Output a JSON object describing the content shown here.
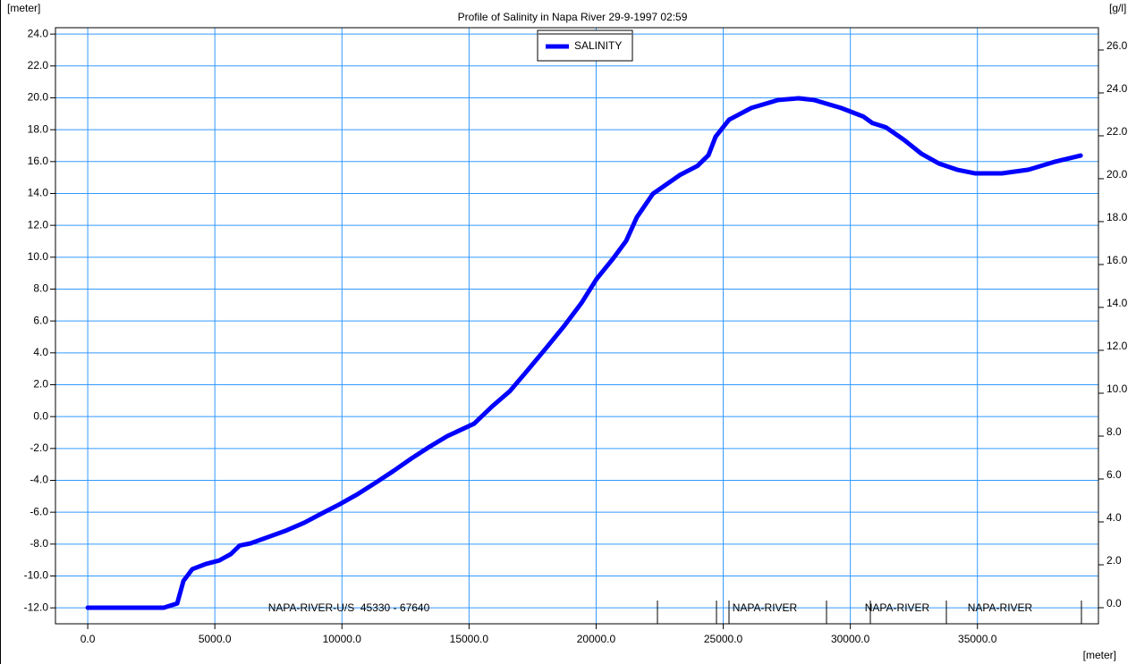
{
  "chart_data": {
    "type": "line",
    "title": "Profile of Salinity in Napa River 29-9-1997 02:59",
    "y_unit": "[meter]",
    "y2_unit": "[g/l]",
    "x_unit": "[meter]",
    "annotations": [
      "NAPA-RIVER-U/S  45330 - 67640",
      "NAPA-RIVER",
      "NAPA-RIVER",
      "NAPA-RIVER"
    ],
    "legend": "top",
    "grid": true,
    "xlim": [
      -1270,
      39760
    ],
    "xticks": [
      {
        "value": 0,
        "label": "0.0"
      },
      {
        "value": 5000,
        "label": "5000.0"
      },
      {
        "value": 10000,
        "label": "10000.0"
      },
      {
        "value": 15000,
        "label": "15000.0"
      },
      {
        "value": 20000,
        "label": "20000.0"
      },
      {
        "value": 25000,
        "label": "25000.0"
      },
      {
        "value": 30000,
        "label": "30000.0"
      },
      {
        "value": 35000,
        "label": "35000.0"
      }
    ],
    "ylim": [
      -13,
      24.4
    ],
    "yticks": [
      {
        "value": -12,
        "label": "-12.0"
      },
      {
        "value": -10,
        "label": "-10.0"
      },
      {
        "value": -8,
        "label": "-8.0"
      },
      {
        "value": -6,
        "label": "-6.0"
      },
      {
        "value": -4,
        "label": "-4.0"
      },
      {
        "value": -2,
        "label": "-2.0"
      },
      {
        "value": 0,
        "label": "0.0"
      },
      {
        "value": 2,
        "label": "2.0"
      },
      {
        "value": 4,
        "label": "4.0"
      },
      {
        "value": 6,
        "label": "6.0"
      },
      {
        "value": 8,
        "label": "8.0"
      },
      {
        "value": 10,
        "label": "10.0"
      },
      {
        "value": 12,
        "label": "12.0"
      },
      {
        "value": 14,
        "label": "14.0"
      },
      {
        "value": 16,
        "label": "16.0"
      },
      {
        "value": 18,
        "label": "18.0"
      },
      {
        "value": 20,
        "label": "20.0"
      },
      {
        "value": 22,
        "label": "22.0"
      },
      {
        "value": 24,
        "label": "24.0"
      }
    ],
    "y2lim": [
      -0.75,
      27.04
    ],
    "y2ticks": [
      {
        "value": 0,
        "label": "0.0"
      },
      {
        "value": 2,
        "label": "2.0"
      },
      {
        "value": 4,
        "label": "4.0"
      },
      {
        "value": 6,
        "label": "6.0"
      },
      {
        "value": 8,
        "label": "8.0"
      },
      {
        "value": 10,
        "label": "10.0"
      },
      {
        "value": 12,
        "label": "12.0"
      },
      {
        "value": 14,
        "label": "14.0"
      },
      {
        "value": 16,
        "label": "16.0"
      },
      {
        "value": 18,
        "label": "18.0"
      },
      {
        "value": 20,
        "label": "20.0"
      },
      {
        "value": 22,
        "label": "22.0"
      },
      {
        "value": 24,
        "label": "24.0"
      },
      {
        "value": 26,
        "label": "26.0"
      }
    ],
    "x": [
      0,
      2990,
      3520,
      3765,
      4117,
      4645,
      5170,
      5630,
      5980,
      6404,
      7108,
      7811,
      8515,
      9218,
      9922,
      10626,
      11330,
      12034,
      12738,
      13441,
      14145,
      15200,
      15904,
      16608,
      17311,
      18015,
      18720,
      19420,
      20020,
      20650,
      21180,
      21600,
      22235,
      23290,
      23990,
      24420,
      24700,
      25230,
      26110,
      27160,
      27970,
      28570,
      29630,
      30510,
      30860,
      31390,
      32090,
      32790,
      33500,
      34200,
      34900,
      35960,
      37010,
      38070,
      39060
    ],
    "series": [
      {
        "name": "SALINITY",
        "color": "#0000ff",
        "axis": "y2",
        "values": [
          0,
          0,
          0.2,
          1.25,
          1.8,
          2.04,
          2.2,
          2.5,
          2.9,
          3.0,
          3.3,
          3.6,
          3.96,
          4.4,
          4.83,
          5.3,
          5.83,
          6.38,
          6.96,
          7.5,
          8.0,
          8.58,
          9.38,
          10.1,
          11.08,
          12.08,
          13.1,
          14.2,
          15.33,
          16.25,
          17.1,
          18.2,
          19.3,
          20.17,
          20.6,
          21.1,
          21.96,
          22.75,
          23.3,
          23.67,
          23.75,
          23.67,
          23.3,
          22.9,
          22.6,
          22.4,
          21.83,
          21.17,
          20.7,
          20.42,
          20.25,
          20.25,
          20.42,
          20.8,
          21.08
        ]
      }
    ]
  }
}
